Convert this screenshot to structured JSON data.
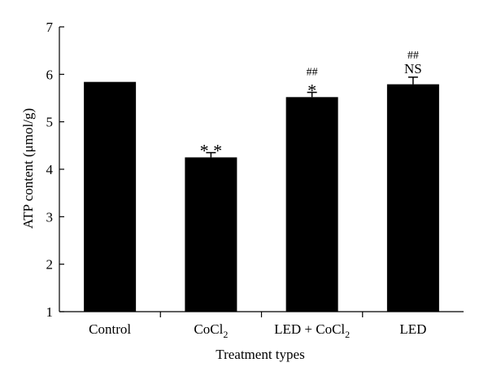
{
  "chart_data": {
    "type": "bar",
    "xlabel": "Treatment types",
    "ylabel": "ATP content (μmol/g)",
    "ylim": [
      1,
      7
    ],
    "yticks": [
      1,
      2,
      3,
      4,
      5,
      6,
      7
    ],
    "grid": false,
    "categories": [
      {
        "main": "Control",
        "sub": ""
      },
      {
        "main": "CoCl",
        "sub": "2"
      },
      {
        "main": "LED + CoCl",
        "sub": "2"
      },
      {
        "main": "LED",
        "sub": ""
      }
    ],
    "values": [
      5.84,
      4.25,
      5.52,
      5.79
    ],
    "errors": [
      0,
      0.1,
      0.1,
      0.15
    ],
    "annotations": [
      [],
      [
        "**"
      ],
      [
        "##",
        "*"
      ],
      [
        "##",
        "NS"
      ]
    ],
    "bar_color": "#000000"
  }
}
